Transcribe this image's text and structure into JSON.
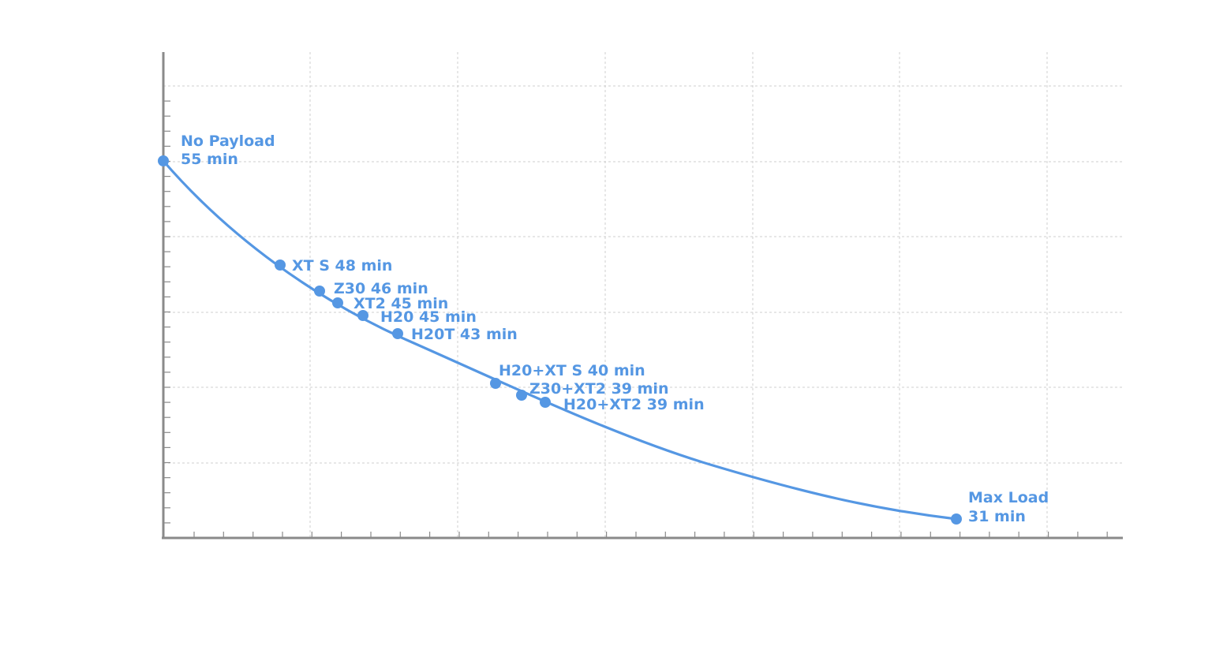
{
  "chart_data": {
    "type": "line",
    "title": "",
    "xlabel": "",
    "ylabel": "",
    "series_color": "#5597e3",
    "axis_color": "#8a8a8a",
    "grid": true,
    "points": [
      {
        "id": "no-payload",
        "line1": "No Payload",
        "line2": "55 min",
        "value": 55
      },
      {
        "id": "xt-s",
        "line1": "XT S 48 min",
        "line2": "",
        "value": 48
      },
      {
        "id": "z30",
        "line1": "Z30 46 min",
        "line2": "",
        "value": 46
      },
      {
        "id": "xt2",
        "line1": "XT2 45 min",
        "line2": "",
        "value": 45
      },
      {
        "id": "h20",
        "line1": "H20 45 min",
        "line2": "",
        "value": 45
      },
      {
        "id": "h20t",
        "line1": "H20T 43 min",
        "line2": "",
        "value": 43
      },
      {
        "id": "h20-xt-s",
        "line1": "H20+XT S 40 min",
        "line2": "",
        "value": 40
      },
      {
        "id": "z30-xt2",
        "line1": "Z30+XT2 39 min",
        "line2": "",
        "value": 39
      },
      {
        "id": "h20-xt2",
        "line1": "H20+XT2 39 min",
        "line2": "",
        "value": 39
      },
      {
        "id": "max-load",
        "line1": "Max Load",
        "line2": "31 min",
        "value": 31
      }
    ]
  }
}
